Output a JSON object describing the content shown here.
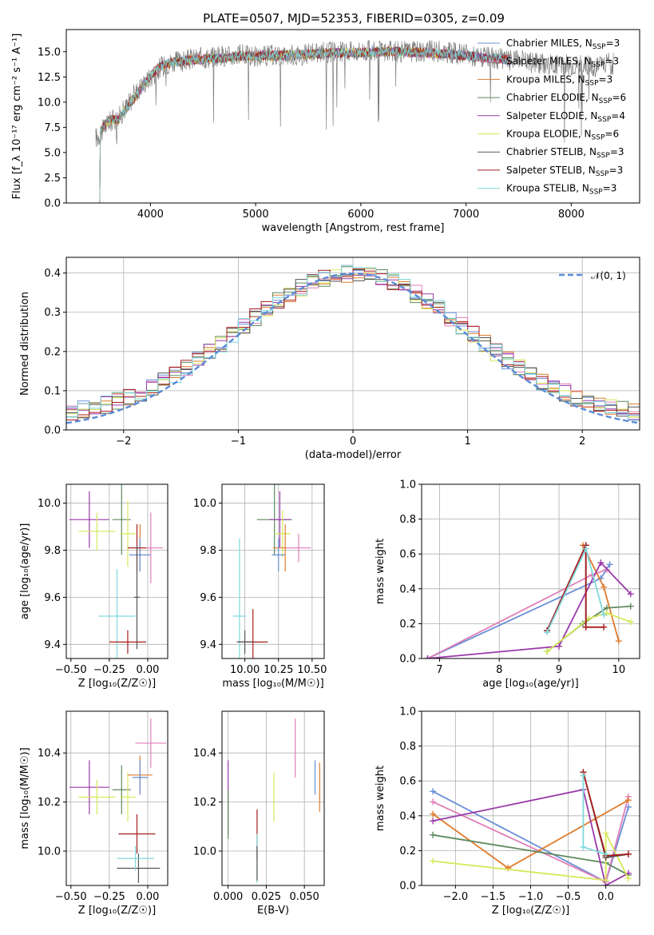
{
  "figure": {
    "title": "PLATE=0507, MJD=52353, FIBERID=0305, z=0.09"
  },
  "colors": {
    "Chabrier MILES": "#6a8fd6",
    "Salpeter MILES": "#e07fb8",
    "Kroupa MILES": "#df7c2d",
    "Chabrier ELODIE": "#5e8a5e",
    "Salpeter ELODIE": "#9a3aaa",
    "Kroupa ELODIE": "#d6e85a",
    "Chabrier STELIB": "#555555",
    "Salpeter STELIB": "#a81c1c",
    "Kroupa STELIB": "#7fd9dd",
    "gaussian": "#5b8ad6",
    "data": "#808080"
  },
  "chart_data": [
    {
      "id": "spectrum",
      "type": "line",
      "xlabel": "wavelength [Angstrom, rest frame]",
      "ylabel": "Flux [f_λ 10⁻¹⁷ erg cm⁻² s⁻¹ A⁻¹]",
      "xlim": [
        3200,
        8650
      ],
      "ylim": [
        0,
        17.2
      ],
      "xticks": [
        4000,
        5000,
        6000,
        7000,
        8000
      ],
      "yticks": [
        0.0,
        2.5,
        5.0,
        7.5,
        10.0,
        12.5,
        15.0
      ],
      "grid": false,
      "legend": "right",
      "legend_entries": [
        "Chabrier MILES, N_SSP=3",
        "Salpeter MILES, N_SSP=3",
        "Kroupa MILES, N_SSP=3",
        "Chabrier ELODIE, N_SSP=6",
        "Salpeter ELODIE, N_SSP=4",
        "Kroupa ELODIE, N_SSP=6",
        "Chabrier STELIB, N_SSP=3",
        "Salpeter STELIB, N_SSP=3",
        "Kroupa STELIB, N_SSP=3"
      ],
      "data_series": {
        "x": [
          3500,
          3600,
          3700,
          3800,
          3900,
          4000,
          4100,
          4200,
          4300,
          4400,
          4500,
          4600,
          4700,
          4800,
          4900,
          5000,
          5200,
          5400,
          5600,
          5800,
          6000,
          6200,
          6400,
          6600,
          6800,
          7000,
          7200,
          7400,
          7600,
          7800,
          8000,
          8200,
          8300
        ],
        "y": [
          6.5,
          8.0,
          8.5,
          10.0,
          11.5,
          12.5,
          13.5,
          14.0,
          14.0,
          14.3,
          14.4,
          14.5,
          14.6,
          14.6,
          14.7,
          14.5,
          14.7,
          14.7,
          14.9,
          15.0,
          15.1,
          15.0,
          15.0,
          15.1,
          15.0,
          14.7,
          14.4,
          14.2,
          14.0,
          13.8,
          13.7,
          13.6,
          13.8
        ]
      },
      "model_series": {
        "x": [
          3500,
          3600,
          3700,
          3800,
          3900,
          4000,
          4100,
          4200,
          4400,
          4600,
          4800,
          5000,
          5200,
          5400,
          5600,
          5800,
          6000,
          6200,
          6400,
          6600,
          6800,
          7000,
          7200,
          7400
        ],
        "y": [
          6.8,
          8.2,
          8.3,
          9.8,
          11.2,
          12.6,
          13.6,
          13.9,
          14.2,
          14.3,
          14.5,
          14.6,
          14.6,
          14.7,
          14.8,
          14.9,
          14.9,
          15.0,
          15.0,
          14.9,
          14.8,
          14.6,
          14.4,
          14.2
        ]
      }
    },
    {
      "id": "residuals",
      "type": "bar",
      "xlabel": "(data-model)/error",
      "ylabel": "Normed distribution",
      "xlim": [
        -2.5,
        2.5
      ],
      "ylim": [
        0,
        0.44
      ],
      "xticks": [
        -2,
        -1,
        0,
        1,
        2
      ],
      "yticks": [
        0.0,
        0.1,
        0.2,
        0.3,
        0.4
      ],
      "grid": true,
      "legend": "top-right",
      "legend_entries": [
        "𝒩(0, 1)"
      ],
      "bin_width": 0.1
    },
    {
      "id": "age-vs-Z",
      "type": "scatter",
      "xlabel": "Z [log₁₀(Z/Z☉)]",
      "ylabel": "age  [log₁₀(age/yr)]",
      "xlim": [
        -0.53,
        0.13
      ],
      "ylim": [
        9.34,
        10.08
      ],
      "xticks": [
        -0.5,
        -0.25,
        0.0
      ],
      "xticklabels": [
        "−0.50",
        "−0.25",
        "0.00"
      ],
      "yticks": [
        9.4,
        9.6,
        9.8,
        10.0
      ],
      "grid": true,
      "points": [
        {
          "model": "Salpeter ELODIE",
          "x": -0.38,
          "y": 9.93,
          "xerr": 0.13,
          "yerr": 0.12
        },
        {
          "model": "Kroupa ELODIE",
          "x": -0.33,
          "y": 9.88,
          "xerr": 0.12,
          "yerr": 0.08
        },
        {
          "model": "Chabrier ELODIE",
          "x": -0.17,
          "y": 9.93,
          "xerr": 0.06,
          "yerr": 0.15
        },
        {
          "model": "Kroupa ELODIE",
          "x": -0.13,
          "y": 9.87,
          "xerr": 0.05,
          "yerr": 0.14
        },
        {
          "model": "Kroupa MILES",
          "x": -0.05,
          "y": 9.81,
          "xerr": 0.08,
          "yerr": 0.1
        },
        {
          "model": "Chabrier MILES",
          "x": -0.05,
          "y": 9.78,
          "xerr": 0.07,
          "yerr": 0.07
        },
        {
          "model": "Salpeter MILES",
          "x": 0.02,
          "y": 9.81,
          "xerr": 0.08,
          "yerr": 0.15
        },
        {
          "model": "Salpeter STELIB",
          "x": -0.07,
          "y": 9.81,
          "xerr": 0.06,
          "yerr": 0.1
        },
        {
          "model": "Chabrier STELIB",
          "x": -0.07,
          "y": 9.6,
          "xerr": 0.02,
          "yerr": 0.22
        },
        {
          "model": "Kroupa STELIB",
          "x": -0.2,
          "y": 9.52,
          "xerr": 0.12,
          "yerr": 0.2
        },
        {
          "model": "Salpeter STELIB",
          "x": -0.13,
          "y": 9.41,
          "xerr": 0.12,
          "yerr": 0.05
        }
      ]
    },
    {
      "id": "age-vs-mass",
      "type": "scatter",
      "xlabel": "mass [log₁₀(M/M☉)]",
      "xlim": [
        9.83,
        10.59
      ],
      "ylim": [
        9.34,
        10.08
      ],
      "xticks": [
        10.0,
        10.25,
        10.5
      ],
      "xticklabels": [
        "10.00",
        "10.25",
        "10.50"
      ],
      "yticks": [
        9.4,
        9.6,
        9.8,
        10.0
      ],
      "grid": true,
      "points": [
        {
          "model": "Chabrier ELODIE",
          "x": 10.22,
          "y": 9.93,
          "xerr": 0.13,
          "yerr": 0.15
        },
        {
          "model": "Salpeter ELODIE",
          "x": 10.26,
          "y": 9.93,
          "xerr": 0.08,
          "yerr": 0.12
        },
        {
          "model": "Kroupa ELODIE",
          "x": 10.28,
          "y": 9.87,
          "xerr": 0.06,
          "yerr": 0.1
        },
        {
          "model": "Kroupa MILES",
          "x": 10.3,
          "y": 9.81,
          "xerr": 0.09,
          "yerr": 0.1
        },
        {
          "model": "Salpeter MILES",
          "x": 10.4,
          "y": 9.81,
          "xerr": 0.09,
          "yerr": 0.06
        },
        {
          "model": "Chabrier MILES",
          "x": 10.25,
          "y": 9.78,
          "xerr": 0.05,
          "yerr": 0.07
        },
        {
          "model": "Kroupa STELIB",
          "x": 9.96,
          "y": 9.52,
          "xerr": 0.05,
          "yerr": 0.33
        },
        {
          "model": "Salpeter STELIB",
          "x": 10.06,
          "y": 9.41,
          "xerr": 0.11,
          "yerr": 0.14
        },
        {
          "model": "Chabrier STELIB",
          "x": 10.0,
          "y": 9.41,
          "xerr": 0.06,
          "yerr": 0.05
        }
      ]
    },
    {
      "id": "mass-weight-vs-age",
      "type": "line",
      "xlabel": "age  [log₁₀(age/yr)]",
      "ylabel": "mass weight",
      "xlim": [
        6.7,
        10.35
      ],
      "ylim": [
        0,
        1.0
      ],
      "xticks": [
        7,
        8,
        9,
        10
      ],
      "yticks": [
        0.0,
        0.2,
        0.4,
        0.6,
        0.8,
        1.0
      ],
      "grid": true,
      "series": [
        {
          "model": "Chabrier MILES",
          "x": [
            6.8,
            9.7,
            9.85
          ],
          "y": [
            0.0,
            0.46,
            0.54
          ]
        },
        {
          "model": "Salpeter MILES",
          "x": [
            6.8,
            9.55,
            9.8
          ],
          "y": [
            0.0,
            0.48,
            0.51
          ]
        },
        {
          "model": "Kroupa MILES",
          "x": [
            9.4,
            9.75,
            10.0
          ],
          "y": [
            0.65,
            0.41,
            0.1
          ]
        },
        {
          "model": "Chabrier ELODIE",
          "x": [
            8.8,
            9.4,
            9.8,
            10.2
          ],
          "y": [
            0.04,
            0.2,
            0.29,
            0.3
          ]
        },
        {
          "model": "Salpeter ELODIE",
          "x": [
            6.8,
            9.0,
            9.7,
            10.2
          ],
          "y": [
            0.0,
            0.07,
            0.55,
            0.37
          ]
        },
        {
          "model": "Kroupa ELODIE",
          "x": [
            8.8,
            9.5,
            9.8,
            10.2
          ],
          "y": [
            0.04,
            0.23,
            0.26,
            0.21
          ]
        },
        {
          "model": "Chabrier STELIB",
          "x": [
            8.8,
            9.45,
            9.45
          ],
          "y": [
            0.16,
            0.65,
            0.18
          ]
        },
        {
          "model": "Salpeter STELIB",
          "x": [
            8.8,
            9.45,
            9.45,
            9.75
          ],
          "y": [
            0.16,
            0.65,
            0.18,
            0.18
          ]
        },
        {
          "model": "Kroupa STELIB",
          "x": [
            8.8,
            9.45,
            9.75
          ],
          "y": [
            0.15,
            0.63,
            0.25
          ]
        }
      ]
    },
    {
      "id": "mass-vs-Z",
      "type": "scatter",
      "xlabel": "Z [log₁₀(Z/Z☉)]",
      "ylabel": "mass [log₁₀(M/M☉)]",
      "xlim": [
        -0.53,
        0.13
      ],
      "ylim": [
        9.86,
        10.57
      ],
      "xticks": [
        -0.5,
        -0.25,
        0.0
      ],
      "xticklabels": [
        "−0.50",
        "−0.25",
        "0.00"
      ],
      "yticks": [
        10.0,
        10.2,
        10.4
      ],
      "grid": true,
      "points": [
        {
          "model": "Salpeter ELODIE",
          "x": -0.38,
          "y": 10.26,
          "xerr": 0.13,
          "yerr": 0.11
        },
        {
          "model": "Kroupa ELODIE",
          "x": -0.33,
          "y": 10.22,
          "xerr": 0.12,
          "yerr": 0.07
        },
        {
          "model": "Chabrier ELODIE",
          "x": -0.17,
          "y": 10.25,
          "xerr": 0.06,
          "yerr": 0.1
        },
        {
          "model": "Kroupa ELODIE",
          "x": -0.13,
          "y": 10.22,
          "xerr": 0.05,
          "yerr": 0.1
        },
        {
          "model": "Salpeter MILES",
          "x": 0.02,
          "y": 10.44,
          "xerr": 0.1,
          "yerr": 0.1
        },
        {
          "model": "Kroupa MILES",
          "x": -0.05,
          "y": 10.31,
          "xerr": 0.08,
          "yerr": 0.08
        },
        {
          "model": "Chabrier MILES",
          "x": -0.05,
          "y": 10.3,
          "xerr": 0.05,
          "yerr": 0.07
        },
        {
          "model": "Salpeter STELIB",
          "x": -0.07,
          "y": 10.07,
          "xerr": 0.12,
          "yerr": 0.08
        },
        {
          "model": "Chabrier STELIB",
          "x": -0.06,
          "y": 9.93,
          "xerr": 0.14,
          "yerr": 0.06
        },
        {
          "model": "Kroupa STELIB",
          "x": -0.08,
          "y": 9.97,
          "xerr": 0.12,
          "yerr": 0.05
        }
      ]
    },
    {
      "id": "mass-vs-EBV",
      "type": "scatter",
      "xlabel": "E(B-V)",
      "xlim": [
        -0.004,
        0.063
      ],
      "ylim": [
        9.86,
        10.57
      ],
      "xticks": [
        0.0,
        0.025,
        0.05
      ],
      "xticklabels": [
        "0.000",
        "0.025",
        "0.050"
      ],
      "yticks": [
        10.0,
        10.2,
        10.4
      ],
      "grid": true,
      "points": [
        {
          "model": "Salpeter ELODIE",
          "x": 0.0,
          "y": 10.22,
          "yerr": 0.15
        },
        {
          "model": "Chabrier ELODIE",
          "x": 0.0,
          "y": 10.15,
          "yerr": 0.1
        },
        {
          "model": "Salpeter STELIB",
          "x": 0.019,
          "y": 10.07,
          "yerr": 0.1
        },
        {
          "model": "Kroupa STELIB",
          "x": 0.019,
          "y": 9.97,
          "yerr": 0.1
        },
        {
          "model": "Chabrier STELIB",
          "x": 0.019,
          "y": 9.95,
          "yerr": 0.07
        },
        {
          "model": "Kroupa ELODIE",
          "x": 0.03,
          "y": 10.22,
          "yerr": 0.1
        },
        {
          "model": "Salpeter MILES",
          "x": 0.044,
          "y": 10.42,
          "yerr": 0.12
        },
        {
          "model": "Chabrier MILES",
          "x": 0.057,
          "y": 10.3,
          "yerr": 0.07
        },
        {
          "model": "Kroupa MILES",
          "x": 0.06,
          "y": 10.26,
          "yerr": 0.1
        }
      ]
    },
    {
      "id": "mass-weight-vs-Z",
      "type": "line",
      "xlabel": "Z [log₁₀(Z/Z☉)]",
      "ylabel": "mass weight",
      "xlim": [
        -2.45,
        0.45
      ],
      "ylim": [
        0,
        1.0
      ],
      "xticks": [
        -2.0,
        -1.5,
        -1.0,
        -0.5,
        0.0
      ],
      "xticklabels": [
        "−2.0",
        "−1.5",
        "−1.0",
        "−0.5",
        "0.0"
      ],
      "yticks": [
        0.0,
        0.2,
        0.4,
        0.6,
        0.8,
        1.0
      ],
      "grid": true,
      "series": [
        {
          "model": "Chabrier MILES",
          "x": [
            -2.3,
            0.0,
            0.3
          ],
          "y": [
            0.54,
            0.02,
            0.45
          ]
        },
        {
          "model": "Salpeter MILES",
          "x": [
            -2.3,
            0.0,
            0.3
          ],
          "y": [
            0.48,
            0.02,
            0.51
          ]
        },
        {
          "model": "Kroupa MILES",
          "x": [
            -2.3,
            -1.3,
            0.3
          ],
          "y": [
            0.41,
            0.1,
            0.49
          ]
        },
        {
          "model": "Chabrier ELODIE",
          "x": [
            -2.3,
            0.0,
            0.3
          ],
          "y": [
            0.29,
            0.13,
            0.06
          ]
        },
        {
          "model": "Salpeter ELODIE",
          "x": [
            -2.3,
            -0.3,
            0.0,
            0.3
          ],
          "y": [
            0.37,
            0.55,
            0.0,
            0.07
          ]
        },
        {
          "model": "Kroupa ELODIE",
          "x": [
            -2.3,
            0.0,
            0.0,
            0.3
          ],
          "y": [
            0.14,
            0.03,
            0.3,
            0.04
          ]
        },
        {
          "model": "Chabrier STELIB",
          "x": [
            -0.3,
            0.0,
            0.3
          ],
          "y": [
            0.65,
            0.16,
            0.18
          ]
        },
        {
          "model": "Salpeter STELIB",
          "x": [
            -0.3,
            0.0,
            0.3
          ],
          "y": [
            0.65,
            0.17,
            0.18
          ]
        },
        {
          "model": "Kroupa STELIB",
          "x": [
            -0.3,
            -0.3,
            0.0
          ],
          "y": [
            0.63,
            0.22,
            0.18
          ]
        }
      ]
    }
  ]
}
